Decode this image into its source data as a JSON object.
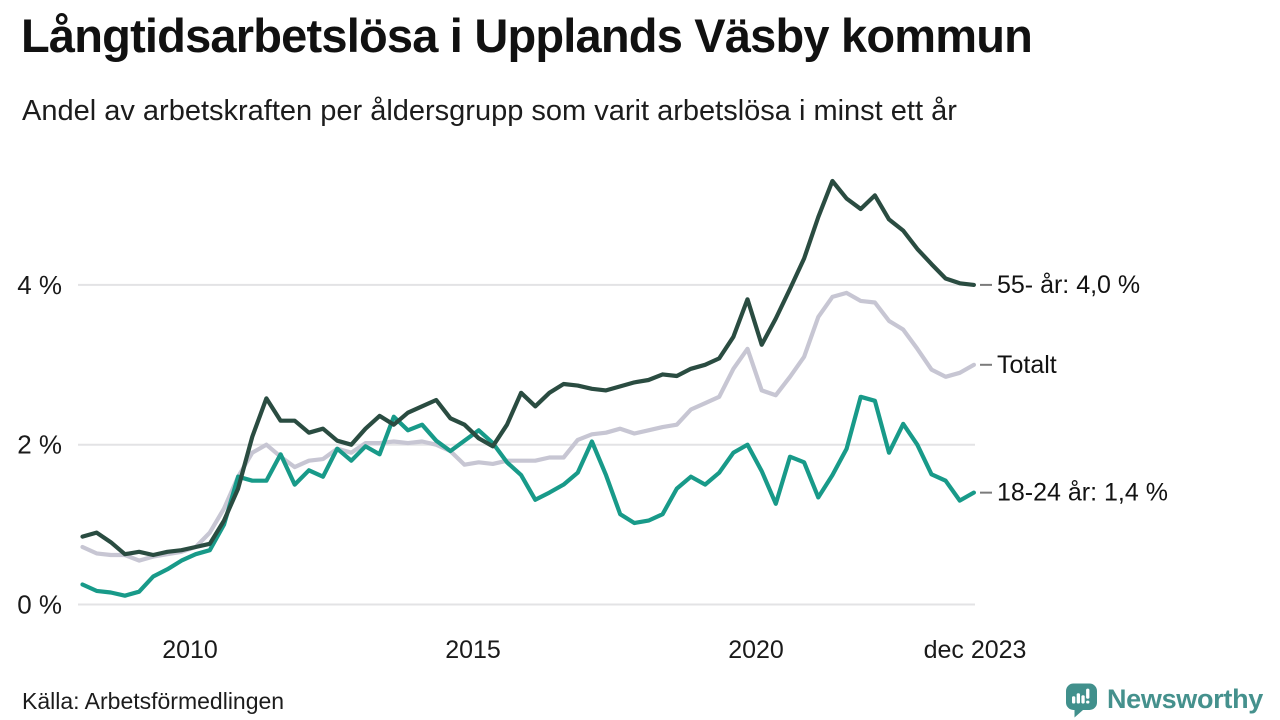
{
  "header": {
    "title": "Långtidsarbetslösa i Upplands Väsby kommun",
    "subtitle": "Andel av arbetskraften per åldersgrupp som varit arbetslösa i minst ett år"
  },
  "footer": {
    "source": "Källa: Arbetsförmedlingen",
    "brand": "Newsworthy"
  },
  "colors": {
    "line_55": "#2a4c41",
    "line_totalt": "#c7c6d3",
    "line_1824": "#189a89",
    "grid": "#e3e3e5",
    "axis_text": "#1a1a1a",
    "label_text": "#121212",
    "tick_dash": "#7b7b7b",
    "brand": "#45918d"
  },
  "chart_data": {
    "type": "line",
    "title": "Långtidsarbetslösa i Upplands Väsby kommun",
    "subtitle": "Andel av arbetskraften per åldersgrupp som varit arbetslösa i minst ett år",
    "unit": "% av arbetskraften",
    "x_start": 2008.1,
    "x_step": 0.25,
    "xlim": [
      2008.0,
      2024.0
    ],
    "ylim": [
      0,
      5.6
    ],
    "grid": "horizontal",
    "legend_position": "right-end-labels",
    "y_axis": {
      "ticks": [
        {
          "v": 0,
          "label": "0 %"
        },
        {
          "v": 2,
          "label": "2 %"
        },
        {
          "v": 4,
          "label": "4 %"
        }
      ]
    },
    "x_axis": {
      "ticks": [
        {
          "x": 2010,
          "label": "2010"
        },
        {
          "x": 2015,
          "label": "2015"
        },
        {
          "x": 2020,
          "label": "2020"
        },
        {
          "x": 2023.87,
          "label": "dec 2023"
        }
      ]
    },
    "series": [
      {
        "name": "Totalt",
        "label": "Totalt",
        "color": "#c7c6d3",
        "last_value": 3.0,
        "values": [
          0.72,
          0.64,
          0.62,
          0.62,
          0.55,
          0.6,
          0.63,
          0.66,
          0.72,
          0.9,
          1.2,
          1.6,
          1.9,
          2.0,
          1.85,
          1.72,
          1.8,
          1.82,
          1.95,
          1.9,
          2.02,
          2.02,
          2.04,
          2.02,
          2.04,
          2.0,
          1.92,
          1.75,
          1.78,
          1.76,
          1.8,
          1.8,
          1.8,
          1.84,
          1.84,
          2.06,
          2.13,
          2.15,
          2.2,
          2.14,
          2.18,
          2.22,
          2.25,
          2.44,
          2.52,
          2.6,
          2.95,
          3.2,
          2.68,
          2.62,
          2.85,
          3.1,
          3.6,
          3.85,
          3.9,
          3.8,
          3.78,
          3.55,
          3.44,
          3.2,
          2.94,
          2.85,
          2.9,
          3.0
        ]
      },
      {
        "name": "18-24 år",
        "label": "18-24 år: 1,4 %",
        "color": "#189a89",
        "last_value": 1.4,
        "values": [
          0.25,
          0.17,
          0.15,
          0.11,
          0.16,
          0.35,
          0.44,
          0.55,
          0.63,
          0.68,
          1.0,
          1.6,
          1.55,
          1.55,
          1.88,
          1.5,
          1.68,
          1.6,
          1.95,
          1.8,
          1.98,
          1.88,
          2.35,
          2.18,
          2.25,
          2.05,
          1.92,
          2.05,
          2.18,
          2.02,
          1.78,
          1.62,
          1.31,
          1.4,
          1.5,
          1.65,
          2.04,
          1.62,
          1.13,
          1.02,
          1.05,
          1.13,
          1.45,
          1.6,
          1.5,
          1.65,
          1.9,
          2.0,
          1.67,
          1.26,
          1.85,
          1.78,
          1.34,
          1.62,
          1.95,
          2.6,
          2.55,
          1.9,
          2.26,
          2.0,
          1.63,
          1.55,
          1.3,
          1.4
        ]
      },
      {
        "name": "55- år",
        "label": "55- år: 4,0 %",
        "color": "#2a4c41",
        "last_value": 4.0,
        "values": [
          0.85,
          0.9,
          0.78,
          0.63,
          0.66,
          0.62,
          0.66,
          0.68,
          0.72,
          0.76,
          1.05,
          1.45,
          2.1,
          2.58,
          2.3,
          2.3,
          2.15,
          2.2,
          2.05,
          2.0,
          2.2,
          2.36,
          2.25,
          2.4,
          2.48,
          2.56,
          2.33,
          2.25,
          2.08,
          1.98,
          2.25,
          2.65,
          2.48,
          2.65,
          2.76,
          2.74,
          2.7,
          2.68,
          2.73,
          2.78,
          2.81,
          2.88,
          2.86,
          2.95,
          3.0,
          3.08,
          3.35,
          3.82,
          3.25,
          3.58,
          3.95,
          4.33,
          4.85,
          5.3,
          5.08,
          4.95,
          5.12,
          4.82,
          4.68,
          4.45,
          4.26,
          4.08,
          4.02,
          4.0
        ]
      }
    ]
  }
}
